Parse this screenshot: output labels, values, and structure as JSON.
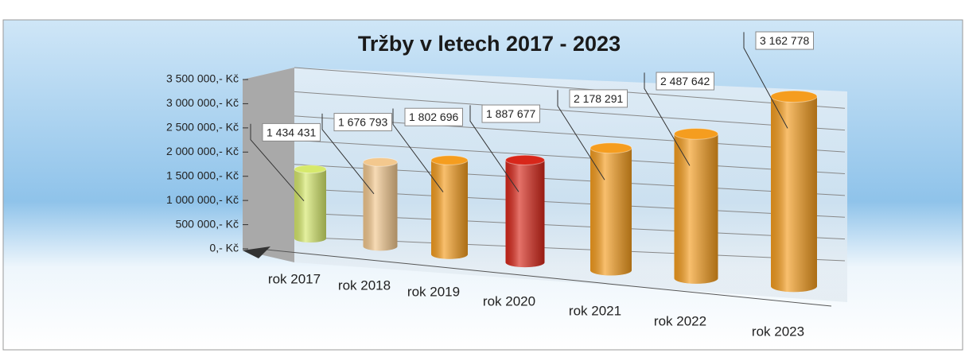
{
  "chart_data": {
    "type": "bar",
    "title": "Tržby v letech 2017 - 2023",
    "categories": [
      "rok 2017",
      "rok 2018",
      "rok 2019",
      "rok 2020",
      "rok 2021",
      "rok 2022",
      "rok 2023"
    ],
    "values": [
      1434431,
      1676793,
      1802696,
      1887677,
      2178291,
      2487642,
      3162778
    ],
    "value_labels": [
      "1 434 431",
      "1 676 793",
      "1 802 696",
      "1 887 677",
      "2 178 291",
      "2 487 642",
      "3 162 778"
    ],
    "colors": [
      "#d6e96c",
      "#f3c88e",
      "#f59d1f",
      "#d8271a",
      "#f59d1f",
      "#f59d1f",
      "#f59d1f"
    ],
    "ylim": [
      0,
      3500000
    ],
    "yticks": [
      {
        "value": 0,
        "label": "0,- Kč"
      },
      {
        "value": 500000,
        "label": "500 000,- Kč"
      },
      {
        "value": 1000000,
        "label": "1 000 000,- Kč"
      },
      {
        "value": 1500000,
        "label": "1 500 000,- Kč"
      },
      {
        "value": 2000000,
        "label": "2 000 000,- Kč"
      },
      {
        "value": 2500000,
        "label": "2 500 000,- Kč"
      },
      {
        "value": 3000000,
        "label": "3 000 000,- Kč"
      },
      {
        "value": 3500000,
        "label": "3 500 000,- Kč"
      }
    ],
    "grid": true
  }
}
